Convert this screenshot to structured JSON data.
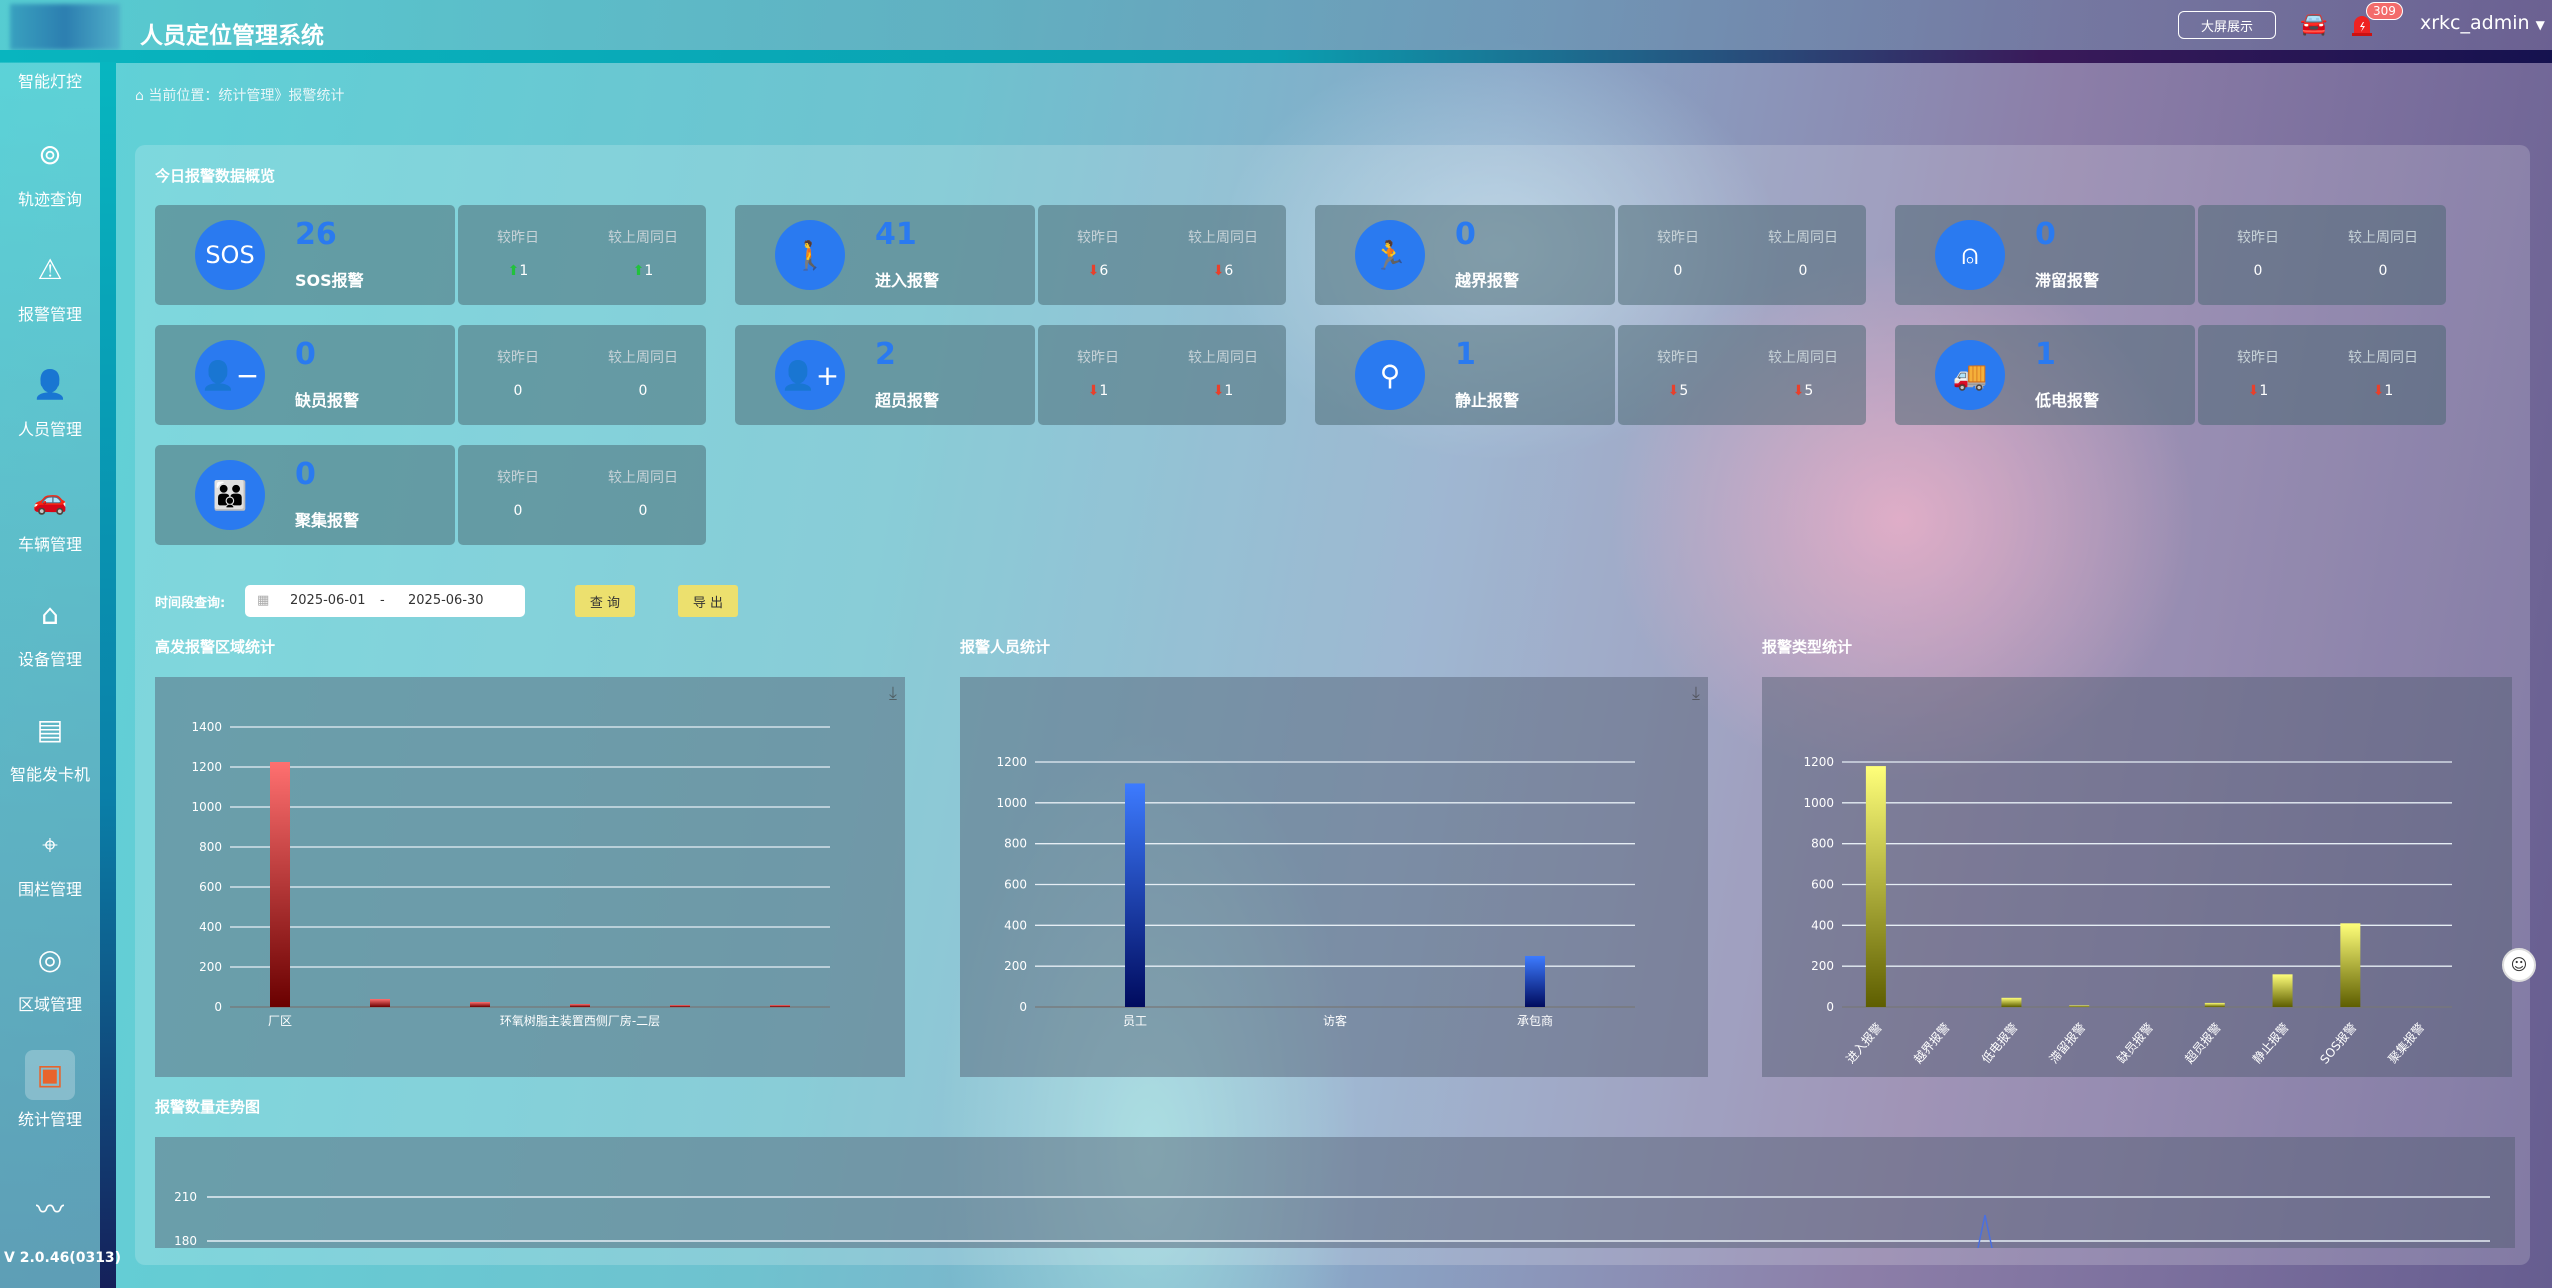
{
  "header": {
    "title": "人员定位管理系统",
    "big_screen": "大屏展示",
    "alarm_count": "309",
    "user": "xrkc_admin"
  },
  "sidebar": {
    "items": [
      {
        "label": "智能灯控",
        "icon": "light-control-icon"
      },
      {
        "label": "轨迹查询",
        "icon": "track-icon"
      },
      {
        "label": "报警管理",
        "icon": "alarm-icon"
      },
      {
        "label": "人员管理",
        "icon": "person-icon"
      },
      {
        "label": "车辆管理",
        "icon": "car-icon"
      },
      {
        "label": "设备管理",
        "icon": "device-icon"
      },
      {
        "label": "智能发卡机",
        "icon": "card-machine-icon"
      },
      {
        "label": "围栏管理",
        "icon": "fence-icon"
      },
      {
        "label": "区域管理",
        "icon": "area-icon"
      },
      {
        "label": "统计管理",
        "icon": "statistics-icon",
        "active": true
      }
    ],
    "version": "V 2.0.46(0313)"
  },
  "breadcrumb": {
    "prefix": "当前位置：",
    "path": "统计管理》报警统计"
  },
  "overview": {
    "title": "今日报警数据概览",
    "cmp_day": "较昨日",
    "cmp_week": "较上周同日",
    "cards": [
      {
        "label": "SOS报警",
        "count": "26",
        "day": "1",
        "day_dir": "up",
        "week": "1",
        "week_dir": "up",
        "icon": "sos-icon"
      },
      {
        "label": "进入报警",
        "count": "41",
        "day": "6",
        "day_dir": "down",
        "week": "6",
        "week_dir": "down",
        "icon": "enter-icon"
      },
      {
        "label": "越界报警",
        "count": "0",
        "day": "0",
        "day_dir": "",
        "week": "0",
        "week_dir": "",
        "icon": "cross-border-icon"
      },
      {
        "label": "滞留报警",
        "count": "0",
        "day": "0",
        "day_dir": "",
        "week": "0",
        "week_dir": "",
        "icon": "stay-icon"
      },
      {
        "label": "缺员报警",
        "count": "0",
        "day": "0",
        "day_dir": "",
        "week": "0",
        "week_dir": "",
        "icon": "person-minus-icon"
      },
      {
        "label": "超员报警",
        "count": "2",
        "day": "1",
        "day_dir": "down",
        "week": "1",
        "week_dir": "down",
        "icon": "person-plus-icon"
      },
      {
        "label": "静止报警",
        "count": "1",
        "day": "5",
        "day_dir": "down",
        "week": "5",
        "week_dir": "down",
        "icon": "static-icon"
      },
      {
        "label": "低电报警",
        "count": "1",
        "day": "1",
        "day_dir": "down",
        "week": "1",
        "week_dir": "down",
        "icon": "truck-icon"
      },
      {
        "label": "聚集报警",
        "count": "0",
        "day": "0",
        "day_dir": "",
        "week": "0",
        "week_dir": "",
        "icon": "group-icon"
      }
    ]
  },
  "filter": {
    "label": "时间段查询:",
    "start": "2025-06-01",
    "sep": "-",
    "end": "2025-06-30",
    "query": "查 询",
    "export": "导 出"
  },
  "colors": {
    "accent": "#2a7af0",
    "up": "#21c23c",
    "down": "#e8402c",
    "button": "#ece06e"
  },
  "chart_data": [
    {
      "title": "高发报警区域统计",
      "type": "bar",
      "categories": [
        "厂区",
        "",
        "",
        "环氧树脂主装置西侧厂房-二层",
        "",
        ""
      ],
      "values": [
        1225,
        40,
        25,
        15,
        10,
        10
      ],
      "ylim": [
        0,
        1400
      ],
      "yticks": [
        0,
        200,
        400,
        600,
        800,
        1000,
        1200,
        1400
      ],
      "grid": true,
      "color_top": "#ff7070",
      "color_bottom": "#6a0000"
    },
    {
      "title": "报警人员统计",
      "type": "bar",
      "categories": [
        "员工",
        "访客",
        "承包商"
      ],
      "values": [
        1095,
        0,
        250
      ],
      "ylim": [
        0,
        1200
      ],
      "yticks": [
        0,
        200,
        400,
        600,
        800,
        1000,
        1200
      ],
      "grid": true,
      "color_top": "#3d7bff",
      "color_bottom": "#000b5e"
    },
    {
      "title": "报警类型统计",
      "type": "bar",
      "categories": [
        "进入报警",
        "越界报警",
        "低电报警",
        "滞留报警",
        "缺员报警",
        "超员报警",
        "静止报警",
        "SOS报警",
        "聚集报警"
      ],
      "values": [
        1180,
        0,
        45,
        8,
        0,
        20,
        160,
        410,
        0
      ],
      "ylim": [
        0,
        1200
      ],
      "yticks": [
        0,
        200,
        400,
        600,
        800,
        1000,
        1200
      ],
      "grid": true,
      "rotate_labels": true,
      "color_top": "#ffff7a",
      "color_bottom": "#5e5e00"
    },
    {
      "title": "报警数量走势图",
      "type": "line",
      "yticks": [
        180,
        210
      ],
      "grid": true,
      "color": "#4a6fe0"
    }
  ]
}
